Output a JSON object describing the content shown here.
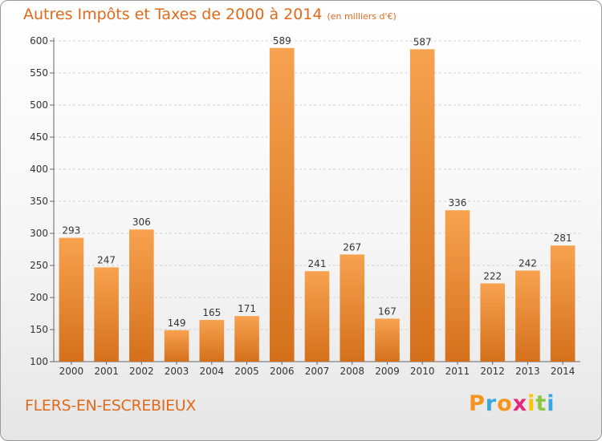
{
  "header": {
    "title": "Autres Impôts et Taxes de 2000 à 2014",
    "subtitle": "(en milliers d'€)"
  },
  "footer": {
    "place": "FLERS-EN-ESCREBIEUX",
    "brand_letters": [
      "P",
      "r",
      "o",
      "x",
      "i",
      "t",
      "i"
    ],
    "brand_colors": [
      "#f7941d",
      "#3aa7e0",
      "#f7941d",
      "#e4287c",
      "#f7c600",
      "#8dc63f",
      "#3aa7e0"
    ]
  },
  "colors": {
    "accent": "#e06a1c",
    "bar_top": "#f7a24f",
    "bar_bottom": "#d4701c"
  },
  "chart_data": {
    "type": "bar",
    "title": "Autres Impôts et Taxes de 2000 à 2014",
    "subtitle": "(en milliers d'€)",
    "categories": [
      "2000",
      "2001",
      "2002",
      "2003",
      "2004",
      "2005",
      "2006",
      "2007",
      "2008",
      "2009",
      "2010",
      "2011",
      "2012",
      "2013",
      "2014"
    ],
    "values": [
      293,
      247,
      306,
      149,
      165,
      171,
      589,
      241,
      267,
      167,
      587,
      336,
      222,
      242,
      281
    ],
    "ylim": [
      100,
      600
    ],
    "yticks": [
      100,
      150,
      200,
      250,
      300,
      350,
      400,
      450,
      500,
      550,
      600
    ],
    "grid": true
  }
}
